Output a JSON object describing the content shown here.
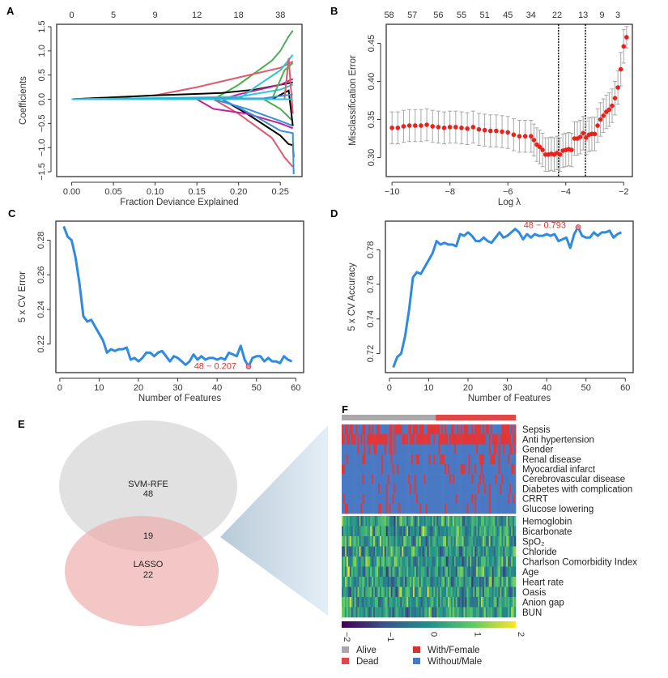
{
  "panels": {
    "A": "A",
    "B": "B",
    "C": "C",
    "D": "D",
    "E": "E",
    "F": "F"
  },
  "chart_data": [
    {
      "id": "A",
      "type": "line",
      "xlabel": "Fraction Deviance Explained",
      "ylabel": "Coefficients",
      "xlim": [
        0,
        0.265
      ],
      "ylim": [
        -1.6,
        1.55
      ],
      "xticks": [
        0.0,
        0.05,
        0.1,
        0.15,
        0.2,
        0.25
      ],
      "xtick_labels": [
        "0.00",
        "0.05",
        "0.10",
        "0.15",
        "0.20",
        "0.25"
      ],
      "yticks": [
        -1.5,
        -1.0,
        -0.5,
        0.0,
        0.5,
        1.0,
        1.5
      ],
      "ytick_labels": [
        "-1.5",
        "-1.0",
        "-0.5",
        "0.0",
        "0.5",
        "1.0",
        "1.5"
      ],
      "top_axis_labels": [
        "0",
        "5",
        "9",
        "12",
        "18",
        "38"
      ],
      "series": [
        {
          "color": "#4caf50",
          "points": [
            [
              0,
              0
            ],
            [
              0.17,
              0
            ],
            [
              0.2,
              0.3
            ],
            [
              0.24,
              0.8
            ],
            [
              0.25,
              1.0
            ],
            [
              0.26,
              1.3
            ],
            [
              0.265,
              1.42
            ]
          ]
        },
        {
          "color": "#e05a6e",
          "points": [
            [
              0,
              0
            ],
            [
              0.1,
              0.08
            ],
            [
              0.15,
              0.25
            ],
            [
              0.2,
              0.45
            ],
            [
              0.25,
              0.65
            ],
            [
              0.265,
              0.78
            ]
          ]
        },
        {
          "color": "#000000",
          "points": [
            [
              0,
              0
            ],
            [
              0.1,
              0.08
            ],
            [
              0.18,
              0.13
            ],
            [
              0.22,
              0.2
            ],
            [
              0.25,
              0.3
            ],
            [
              0.265,
              0.35
            ]
          ]
        },
        {
          "color": "#c0229c",
          "points": [
            [
              0,
              0
            ],
            [
              0.18,
              0
            ],
            [
              0.2,
              0.1
            ],
            [
              0.25,
              0.3
            ],
            [
              0.265,
              0.42
            ]
          ]
        },
        {
          "color": "#2ec4d6",
          "points": [
            [
              0,
              0
            ],
            [
              0.2,
              0
            ],
            [
              0.22,
              0.25
            ],
            [
              0.25,
              0.6
            ],
            [
              0.265,
              0.92
            ]
          ]
        },
        {
          "color": "#e05a6e",
          "points": [
            [
              0,
              0
            ],
            [
              0.17,
              0
            ],
            [
              0.2,
              -0.3
            ],
            [
              0.24,
              -0.8
            ],
            [
              0.255,
              -1.2
            ],
            [
              0.265,
              -1.4
            ]
          ]
        },
        {
          "color": "#000000",
          "points": [
            [
              0,
              0
            ],
            [
              0.18,
              0
            ],
            [
              0.21,
              -0.3
            ],
            [
              0.25,
              -0.75
            ],
            [
              0.26,
              -0.93
            ],
            [
              0.265,
              -0.95
            ],
            [
              0.266,
              -1.2
            ]
          ]
        },
        {
          "color": "#c0229c",
          "points": [
            [
              0,
              0
            ],
            [
              0.15,
              0
            ],
            [
              0.17,
              -0.2
            ],
            [
              0.21,
              -0.3
            ],
            [
              0.25,
              -0.5
            ],
            [
              0.265,
              -0.6
            ]
          ]
        },
        {
          "color": "#3a8fd6",
          "points": [
            [
              0,
              0
            ],
            [
              0.18,
              0
            ],
            [
              0.22,
              -0.35
            ],
            [
              0.25,
              -0.65
            ],
            [
              0.265,
              -0.7
            ],
            [
              0.266,
              -1.55
            ]
          ]
        },
        {
          "color": "#3a8fd6",
          "points": [
            [
              0,
              0
            ],
            [
              0.17,
              0
            ],
            [
              0.21,
              -0.2
            ],
            [
              0.25,
              -0.45
            ],
            [
              0.265,
              -0.55
            ]
          ]
        },
        {
          "color": "#4caf50",
          "points": [
            [
              0,
              0
            ],
            [
              0.23,
              0
            ],
            [
              0.25,
              -0.2
            ],
            [
              0.265,
              -0.45
            ]
          ]
        },
        {
          "color": "#2ec4d6",
          "points": [
            [
              0,
              0
            ],
            [
              0.2,
              0.05
            ],
            [
              0.25,
              0.2
            ],
            [
              0.265,
              0.3
            ]
          ]
        },
        {
          "color": "#000000",
          "points": [
            [
              0,
              0
            ],
            [
              0.24,
              0
            ],
            [
              0.26,
              0.18
            ],
            [
              0.265,
              -0.55
            ]
          ]
        },
        {
          "color": "#e05a6e",
          "points": [
            [
              0,
              0
            ],
            [
              0.255,
              0
            ],
            [
              0.26,
              0.85
            ],
            [
              0.265,
              -0.3
            ]
          ]
        },
        {
          "color": "#4caf50",
          "points": [
            [
              0,
              0
            ],
            [
              0.24,
              0
            ],
            [
              0.255,
              0.6
            ],
            [
              0.265,
              0.75
            ]
          ]
        },
        {
          "color": "#3a8fd6",
          "points": [
            [
              0,
              0
            ],
            [
              0.23,
              0.02
            ],
            [
              0.265,
              0.1
            ]
          ]
        },
        {
          "color": "#2ec4d6",
          "points": [
            [
              0,
              0
            ],
            [
              0.265,
              0
            ]
          ]
        }
      ]
    },
    {
      "id": "B",
      "type": "scatter",
      "xlabel": "Log λ",
      "ylabel": "Misclassification Error",
      "xlim": [
        -10.2,
        -1.7
      ],
      "ylim": [
        0.275,
        0.475
      ],
      "xticks": [
        -10,
        -8,
        -6,
        -4,
        -2
      ],
      "xtick_labels": [
        "-10",
        "-8",
        "-6",
        "-4",
        "-2"
      ],
      "yticks": [
        0.3,
        0.35,
        0.4,
        0.45
      ],
      "ytick_labels": [
        "0.30",
        "0.35",
        "0.40",
        "0.45"
      ],
      "top_axis_labels": [
        "58",
        "57",
        "56",
        "55",
        "51",
        "45",
        "34",
        "22",
        "13",
        "9",
        "3"
      ],
      "top_axis_positions": [
        -10.1,
        -9.3,
        -8.4,
        -7.6,
        -6.8,
        -6.0,
        -5.2,
        -4.3,
        -3.4,
        -2.75,
        -2.2
      ],
      "vlines": [
        -4.25,
        -3.32
      ],
      "point_color": "#e8221c",
      "errorbar_color": "#a8a8a8",
      "x": [
        -10,
        -9.8,
        -9.6,
        -9.4,
        -9.2,
        -9,
        -8.8,
        -8.6,
        -8.4,
        -8.2,
        -8,
        -7.8,
        -7.6,
        -7.4,
        -7.2,
        -7,
        -6.8,
        -6.6,
        -6.4,
        -6.2,
        -6,
        -5.8,
        -5.6,
        -5.4,
        -5.2,
        -5.1,
        -5.0,
        -4.9,
        -4.8,
        -4.7,
        -4.6,
        -4.5,
        -4.4,
        -4.3,
        -4.2,
        -4.1,
        -4.0,
        -3.9,
        -3.8,
        -3.7,
        -3.6,
        -3.5,
        -3.4,
        -3.3,
        -3.2,
        -3.1,
        -3.0,
        -2.9,
        -2.8,
        -2.7,
        -2.6,
        -2.5,
        -2.4,
        -2.3,
        -2.2,
        -2.1,
        -2.0,
        -1.9
      ],
      "y": [
        0.339,
        0.339,
        0.341,
        0.342,
        0.342,
        0.342,
        0.343,
        0.341,
        0.34,
        0.339,
        0.34,
        0.34,
        0.339,
        0.338,
        0.34,
        0.337,
        0.336,
        0.335,
        0.335,
        0.334,
        0.333,
        0.33,
        0.328,
        0.328,
        0.328,
        0.323,
        0.317,
        0.314,
        0.31,
        0.304,
        0.304,
        0.305,
        0.304,
        0.306,
        0.304,
        0.309,
        0.31,
        0.311,
        0.31,
        0.325,
        0.325,
        0.327,
        0.332,
        0.326,
        0.33,
        0.331,
        0.331,
        0.342,
        0.35,
        0.355,
        0.36,
        0.363,
        0.368,
        0.378,
        0.392,
        0.416,
        0.446,
        0.458
      ],
      "error_half_width": [
        0.021,
        0.021,
        0.021,
        0.021,
        0.021,
        0.021,
        0.021,
        0.021,
        0.021,
        0.021,
        0.021,
        0.021,
        0.021,
        0.021,
        0.021,
        0.021,
        0.021,
        0.021,
        0.021,
        0.021,
        0.021,
        0.021,
        0.021,
        0.021,
        0.021,
        0.021,
        0.022,
        0.022,
        0.022,
        0.022,
        0.022,
        0.022,
        0.022,
        0.022,
        0.022,
        0.022,
        0.022,
        0.022,
        0.022,
        0.022,
        0.022,
        0.022,
        0.022,
        0.022,
        0.022,
        0.022,
        0.022,
        0.022,
        0.022,
        0.022,
        0.022,
        0.022,
        0.022,
        0.022,
        0.022,
        0.022,
        0.022,
        0.014
      ]
    },
    {
      "id": "C",
      "type": "line",
      "xlabel": "Number of Features",
      "ylabel": "5 x CV Error",
      "xlim": [
        -1,
        62
      ],
      "ylim": [
        0.2035,
        0.291
      ],
      "xticks": [
        0,
        10,
        20,
        30,
        40,
        50,
        60
      ],
      "xtick_labels": [
        "0",
        "10",
        "20",
        "30",
        "40",
        "50",
        "60"
      ],
      "yticks": [
        0.22,
        0.24,
        0.26,
        0.28
      ],
      "ytick_labels": [
        "0.22",
        "0.24",
        "0.26",
        "0.28"
      ],
      "line_color": "#2f8be0",
      "annotation": {
        "text": "48 − 0.207",
        "x": 48,
        "y": 0.207,
        "color": "#d9362f"
      },
      "x": [
        1,
        2,
        3,
        4,
        5,
        6,
        7,
        8,
        9,
        10,
        11,
        12,
        13,
        14,
        15,
        16,
        17,
        18,
        19,
        20,
        21,
        22,
        23,
        24,
        25,
        26,
        27,
        28,
        29,
        30,
        31,
        32,
        33,
        34,
        35,
        36,
        37,
        38,
        39,
        40,
        41,
        42,
        43,
        44,
        45,
        46,
        47,
        48,
        49,
        50,
        51,
        52,
        53,
        54,
        55,
        56,
        57,
        58,
        59
      ],
      "y": [
        0.288,
        0.282,
        0.28,
        0.27,
        0.255,
        0.236,
        0.233,
        0.234,
        0.23,
        0.226,
        0.222,
        0.215,
        0.217,
        0.216,
        0.217,
        0.217,
        0.218,
        0.211,
        0.212,
        0.21,
        0.212,
        0.215,
        0.215,
        0.213,
        0.215,
        0.216,
        0.213,
        0.21,
        0.213,
        0.212,
        0.21,
        0.208,
        0.21,
        0.214,
        0.211,
        0.213,
        0.211,
        0.212,
        0.212,
        0.211,
        0.212,
        0.211,
        0.215,
        0.214,
        0.213,
        0.219,
        0.211,
        0.207,
        0.212,
        0.213,
        0.213,
        0.21,
        0.212,
        0.21,
        0.21,
        0.209,
        0.213,
        0.211,
        0.21
      ]
    },
    {
      "id": "D",
      "type": "line",
      "xlabel": "Number of Features",
      "ylabel": "5 x CV Accuracy",
      "xlim": [
        -1,
        62
      ],
      "ylim": [
        0.709,
        0.7965
      ],
      "xticks": [
        0,
        10,
        20,
        30,
        40,
        50,
        60
      ],
      "xtick_labels": [
        "0",
        "10",
        "20",
        "30",
        "40",
        "50",
        "60"
      ],
      "yticks": [
        0.72,
        0.74,
        0.76,
        0.78
      ],
      "ytick_labels": [
        "0.72",
        "0.74",
        "0.76",
        "0.78"
      ],
      "line_color": "#2f8be0",
      "annotation": {
        "text": "48 − 0.793",
        "x": 48,
        "y": 0.793,
        "color": "#d9362f"
      },
      "x": [
        1,
        2,
        3,
        4,
        5,
        6,
        7,
        8,
        9,
        10,
        11,
        12,
        13,
        14,
        15,
        16,
        17,
        18,
        19,
        20,
        21,
        22,
        23,
        24,
        25,
        26,
        27,
        28,
        29,
        30,
        31,
        32,
        33,
        34,
        35,
        36,
        37,
        38,
        39,
        40,
        41,
        42,
        43,
        44,
        45,
        46,
        47,
        48,
        49,
        50,
        51,
        52,
        53,
        54,
        55,
        56,
        57,
        58,
        59
      ],
      "y": [
        0.712,
        0.718,
        0.72,
        0.73,
        0.745,
        0.764,
        0.767,
        0.766,
        0.77,
        0.774,
        0.778,
        0.785,
        0.783,
        0.784,
        0.783,
        0.783,
        0.782,
        0.789,
        0.788,
        0.79,
        0.788,
        0.785,
        0.785,
        0.787,
        0.785,
        0.784,
        0.787,
        0.79,
        0.787,
        0.788,
        0.79,
        0.792,
        0.79,
        0.786,
        0.789,
        0.787,
        0.789,
        0.788,
        0.788,
        0.789,
        0.788,
        0.789,
        0.785,
        0.786,
        0.787,
        0.781,
        0.789,
        0.793,
        0.788,
        0.787,
        0.787,
        0.79,
        0.788,
        0.79,
        0.79,
        0.791,
        0.787,
        0.789,
        0.79
      ]
    },
    {
      "id": "E",
      "type": "venn",
      "sets": [
        {
          "name": "SVM-RFE",
          "count": "48",
          "color": "#dcdcdc"
        },
        {
          "name": "LASSO",
          "count": "22",
          "color": "#f2bcbc"
        }
      ],
      "intersection": "19"
    },
    {
      "id": "F",
      "type": "heatmap",
      "group_bar": {
        "alive_fraction": 0.54,
        "alive_color": "#a9a9a9",
        "dead_color": "#e04848"
      },
      "binary_rows": [
        "Sepsis",
        "Anti  hypertension",
        "Gender",
        "Renal disease",
        "Myocardial  infarct",
        "Cerebrovascular  disease",
        "Diabetes with  complication",
        "CRRT",
        "Glucose lowering"
      ],
      "continuous_rows": [
        "Hemoglobin",
        "Bicarbonate",
        "SpO₂",
        "Chloride",
        "Charlson Comorbidity Index",
        "Age",
        "Heart rate",
        "Oasis",
        "Anion gap",
        "BUN"
      ],
      "colorbar": {
        "ticks": [
          "-2",
          "-1",
          "0",
          "1",
          "2"
        ],
        "colors": [
          "#440154",
          "#3b528b",
          "#21908d",
          "#5dc963",
          "#fde725"
        ]
      },
      "binary_colors": {
        "with": "#e0373a",
        "without": "#4a79c4"
      },
      "legend": [
        {
          "label": "Alive",
          "color": "#a9a9a9"
        },
        {
          "label": "Dead",
          "color": "#e04848"
        },
        {
          "label": "With/Female",
          "color": "#d93030"
        },
        {
          "label": "Without/Male",
          "color": "#4a79c4"
        }
      ]
    }
  ]
}
